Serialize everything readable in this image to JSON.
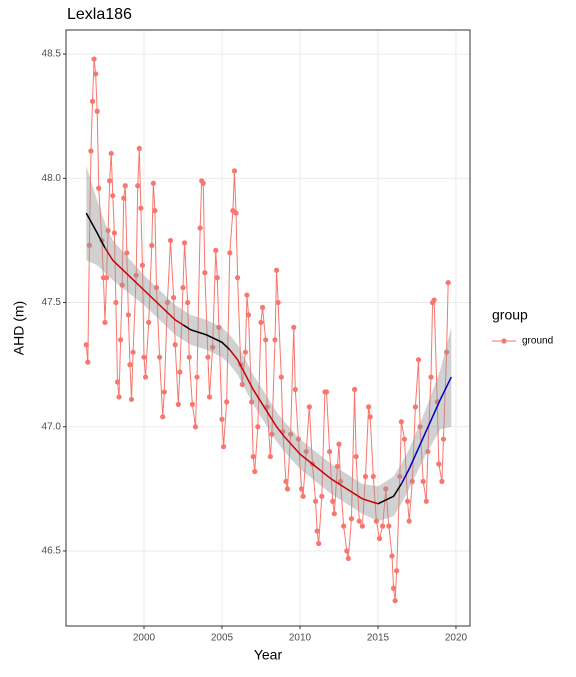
{
  "chart_data": {
    "type": "line",
    "title": "Lexla186",
    "x_label": "Year",
    "y_label": "AHD (m)",
    "legend_title": "group",
    "grid": true,
    "xlim": [
      1995.0,
      2020.9
    ],
    "xticks": [
      2000,
      2005,
      2010,
      2015,
      2020
    ],
    "ylim": [
      46.198,
      48.597
    ],
    "yticks": [
      {
        "value": 46.5,
        "label": "46.5"
      },
      {
        "value": 47,
        "label": "47.0"
      },
      {
        "value": 47.5,
        "label": "47.5"
      },
      {
        "value": 48,
        "label": "48.0"
      },
      {
        "value": 48.5,
        "label": "48.5"
      }
    ],
    "series": [
      {
        "name": "ground",
        "color": "#F8766D",
        "x": [
          1996.3,
          1996.4,
          1996.5,
          1996.6,
          1996.7,
          1996.8,
          1996.9,
          1997.0,
          1997.1,
          1997.3,
          1997.4,
          1997.5,
          1997.6,
          1997.7,
          1997.8,
          1997.9,
          1998.0,
          1998.1,
          1998.2,
          1998.3,
          1998.4,
          1998.5,
          1998.6,
          1998.7,
          1998.8,
          1998.9,
          1999.0,
          1999.1,
          1999.2,
          1999.3,
          1999.5,
          1999.6,
          1999.7,
          1999.8,
          1999.9,
          2000.0,
          2000.1,
          2000.3,
          2000.5,
          2000.6,
          2000.7,
          2000.8,
          2001.0,
          2001.2,
          2001.3,
          2001.5,
          2001.7,
          2001.9,
          2002.0,
          2002.2,
          2002.3,
          2002.5,
          2002.6,
          2002.8,
          2002.9,
          2003.1,
          2003.3,
          2003.4,
          2003.6,
          2003.7,
          2003.8,
          2003.9,
          2004.1,
          2004.2,
          2004.4,
          2004.6,
          2004.7,
          2004.8,
          2005.0,
          2005.1,
          2005.3,
          2005.5,
          2005.7,
          2005.8,
          2005.9,
          2006.0,
          2006.2,
          2006.3,
          2006.5,
          2006.6,
          2006.7,
          2006.9,
          2007.0,
          2007.1,
          2007.3,
          2007.5,
          2007.6,
          2007.8,
          2007.9,
          2008.1,
          2008.2,
          2008.4,
          2008.5,
          2008.6,
          2008.8,
          2008.9,
          2009.1,
          2009.2,
          2009.4,
          2009.6,
          2009.7,
          2009.9,
          2010.1,
          2010.2,
          2010.4,
          2010.6,
          2010.8,
          2011.0,
          2011.1,
          2011.2,
          2011.4,
          2011.6,
          2011.7,
          2011.9,
          2012.1,
          2012.2,
          2012.4,
          2012.5,
          2012.6,
          2012.8,
          2013.0,
          2013.1,
          2013.3,
          2013.5,
          2013.6,
          2013.8,
          2014.0,
          2014.2,
          2014.4,
          2014.5,
          2014.7,
          2014.9,
          2015.1,
          2015.3,
          2015.5,
          2015.7,
          2015.9,
          2016.0,
          2016.1,
          2016.2,
          2016.4,
          2016.5,
          2016.7,
          2016.9,
          2017.0,
          2017.2,
          2017.4,
          2017.6,
          2017.7,
          2017.9,
          2018.1,
          2018.2,
          2018.4,
          2018.5,
          2018.6,
          2018.8,
          2018.9,
          2019.1,
          2019.2,
          2019.4,
          2019.5
        ],
        "values": [
          47.33,
          47.26,
          47.73,
          48.11,
          48.31,
          48.48,
          48.42,
          48.27,
          47.96,
          47.75,
          47.6,
          47.42,
          47.6,
          47.79,
          47.99,
          48.1,
          47.93,
          47.78,
          47.5,
          47.18,
          47.12,
          47.35,
          47.57,
          47.92,
          47.97,
          47.7,
          47.45,
          47.25,
          47.11,
          47.3,
          47.61,
          47.97,
          48.12,
          47.88,
          47.65,
          47.28,
          47.2,
          47.42,
          47.73,
          47.98,
          47.87,
          47.56,
          47.28,
          47.04,
          47.14,
          47.5,
          47.75,
          47.52,
          47.33,
          47.09,
          47.22,
          47.56,
          47.74,
          47.5,
          47.28,
          47.09,
          47.0,
          47.2,
          47.8,
          47.99,
          47.98,
          47.62,
          47.28,
          47.12,
          47.32,
          47.71,
          47.6,
          47.4,
          47.03,
          46.92,
          47.1,
          47.7,
          47.87,
          48.03,
          47.86,
          47.6,
          47.25,
          47.17,
          47.3,
          47.53,
          47.45,
          47.1,
          46.88,
          46.82,
          47.0,
          47.42,
          47.48,
          47.35,
          47.08,
          46.88,
          46.97,
          47.35,
          47.63,
          47.5,
          47.2,
          46.98,
          46.78,
          46.75,
          46.97,
          47.4,
          47.15,
          46.95,
          46.75,
          46.72,
          46.9,
          47.08,
          46.85,
          46.7,
          46.58,
          46.53,
          46.72,
          47.14,
          47.14,
          46.9,
          46.7,
          46.65,
          46.84,
          46.93,
          46.78,
          46.6,
          46.5,
          46.47,
          46.63,
          47.15,
          46.88,
          46.62,
          46.6,
          46.8,
          47.08,
          47.04,
          46.8,
          46.62,
          46.55,
          46.6,
          46.75,
          46.6,
          46.48,
          46.35,
          46.3,
          46.42,
          46.8,
          47.02,
          46.95,
          46.7,
          46.62,
          46.78,
          47.08,
          47.27,
          47.0,
          46.78,
          46.7,
          46.9,
          47.2,
          47.5,
          47.51,
          47.1,
          46.85,
          46.78,
          46.95,
          47.3,
          47.58
        ]
      }
    ],
    "trend": [
      {
        "color": "#000000",
        "x": [
          1996.3,
          1997.0,
          1997.5
        ],
        "y": [
          47.86,
          47.78,
          47.72
        ],
        "lower": [
          47.67,
          47.65,
          47.62
        ],
        "upper": [
          48.05,
          47.91,
          47.82
        ]
      },
      {
        "color": "#cc0000",
        "x": [
          1997.5,
          1998.0,
          1999.0,
          2000.0,
          2001.0,
          2002.0,
          2002.5
        ],
        "y": [
          47.72,
          47.67,
          47.61,
          47.55,
          47.49,
          47.43,
          47.41
        ],
        "lower": [
          47.62,
          47.59,
          47.54,
          47.49,
          47.43,
          47.37,
          47.35
        ],
        "upper": [
          47.82,
          47.75,
          47.68,
          47.61,
          47.55,
          47.49,
          47.47
        ]
      },
      {
        "color": "#000000",
        "x": [
          2002.5,
          2003.0,
          2004.0,
          2005.0,
          2005.5
        ],
        "y": [
          47.41,
          47.39,
          47.37,
          47.34,
          47.31
        ],
        "lower": [
          47.35,
          47.33,
          47.31,
          47.28,
          47.25
        ],
        "upper": [
          47.47,
          47.45,
          47.43,
          47.4,
          47.37
        ]
      },
      {
        "color": "#cc0000",
        "x": [
          2005.5,
          2006.0,
          2007.0,
          2008.0,
          2008.5,
          2009.0,
          2010.0,
          2011.0,
          2012.0,
          2013.0,
          2014.0,
          2015.0
        ],
        "y": [
          47.31,
          47.27,
          47.15,
          47.05,
          47.0,
          46.96,
          46.89,
          46.84,
          46.79,
          46.75,
          46.71,
          46.69
        ],
        "lower": [
          47.25,
          47.21,
          47.09,
          46.99,
          46.94,
          46.9,
          46.83,
          46.78,
          46.73,
          46.69,
          46.65,
          46.62
        ],
        "upper": [
          47.37,
          47.33,
          47.21,
          47.11,
          47.06,
          47.02,
          46.95,
          46.9,
          46.85,
          46.81,
          46.77,
          46.76
        ]
      },
      {
        "color": "#000000",
        "x": [
          2015.0,
          2016.0,
          2016.5
        ],
        "y": [
          46.69,
          46.72,
          46.77
        ],
        "lower": [
          46.62,
          46.64,
          46.69
        ],
        "upper": [
          46.76,
          46.8,
          46.85
        ]
      },
      {
        "color": "#0000cc",
        "x": [
          2016.5,
          2017.0,
          2018.0,
          2019.0,
          2019.7
        ],
        "y": [
          46.77,
          46.83,
          46.97,
          47.11,
          47.2
        ],
        "lower": [
          46.69,
          46.75,
          46.88,
          46.99,
          47.0
        ],
        "upper": [
          46.85,
          46.91,
          47.06,
          47.23,
          47.4
        ]
      }
    ]
  }
}
